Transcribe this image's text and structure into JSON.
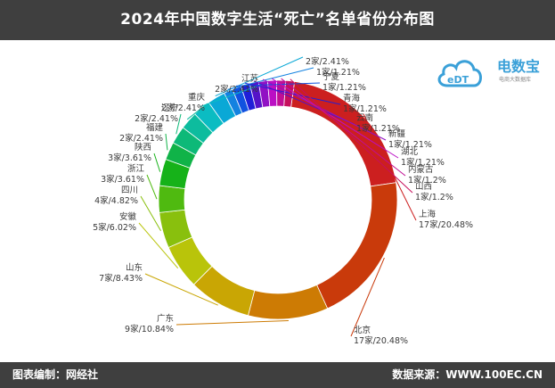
{
  "header": {
    "title": "2024年中国数字生活“死亡”名单省份分布图"
  },
  "footer": {
    "left": "图表编制：网经社",
    "right": "数据来源：WWW.100EC.CN"
  },
  "logo": {
    "text": "电数宝",
    "sub": "电商大数据库",
    "icon_text": "eDT"
  },
  "chart_data": {
    "type": "pie",
    "donut": true,
    "slices": [
      {
        "name": "上海",
        "count": "17家",
        "percent": 20.48,
        "color": "#cc1f1f"
      },
      {
        "name": "北京",
        "count": "17家",
        "percent": 20.48,
        "color": "#c93a0b"
      },
      {
        "name": "广东",
        "count": "9家",
        "percent": 10.84,
        "color": "#cd7b04"
      },
      {
        "name": "山东",
        "count": "7家",
        "percent": 8.43,
        "color": "#c9a604"
      },
      {
        "name": "安徽",
        "count": "5家",
        "percent": 6.02,
        "color": "#b9c40a"
      },
      {
        "name": "四川",
        "count": "4家",
        "percent": 4.82,
        "color": "#89c00d"
      },
      {
        "name": "浙江",
        "count": "3家",
        "percent": 3.61,
        "color": "#4fba10"
      },
      {
        "name": "陕西",
        "count": "3家",
        "percent": 3.61,
        "color": "#16b219"
      },
      {
        "name": "福建",
        "count": "2家",
        "percent": 2.41,
        "color": "#10b348"
      },
      {
        "name": "辽宁",
        "count": "2家",
        "percent": 2.41,
        "color": "#0db978"
      },
      {
        "name": "重庆",
        "count": "2家",
        "percent": 2.41,
        "color": "#0dbc9e"
      },
      {
        "name": "江苏",
        "count": "2家",
        "percent": 2.41,
        "color": "#0bbcc2"
      },
      {
        "name": "",
        "count": "2家",
        "percent": 2.41,
        "color": "#0aa8d6"
      },
      {
        "name": "",
        "count": "1家",
        "percent": 1.21,
        "color": "#1382e0"
      },
      {
        "name": "宁夏",
        "count": "1家",
        "percent": 1.21,
        "color": "#1152e0"
      },
      {
        "name": "青海",
        "count": "1家",
        "percent": 1.21,
        "color": "#1f1fd8"
      },
      {
        "name": "云南",
        "count": "1家",
        "percent": 1.21,
        "color": "#5513c8"
      },
      {
        "name": "新疆",
        "count": "1家",
        "percent": 1.21,
        "color": "#9111c4"
      },
      {
        "name": "湖北",
        "count": "1家",
        "percent": 1.21,
        "color": "#bb0fc4"
      },
      {
        "name": "内蒙古",
        "count": "1家",
        "percent": 1.2,
        "color": "#c00f94"
      },
      {
        "name": "山西",
        "count": "1家",
        "percent": 1.2,
        "color": "#c6105c"
      }
    ]
  }
}
